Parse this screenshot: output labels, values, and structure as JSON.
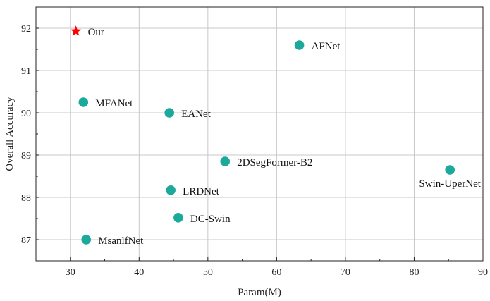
{
  "chart_data": {
    "type": "scatter",
    "title": "",
    "xlabel": "Param(M)",
    "ylabel": "Overall Accuracy",
    "xlim": [
      25,
      90
    ],
    "ylim": [
      86.5,
      92.5
    ],
    "xticks": [
      30,
      40,
      50,
      60,
      70,
      80,
      90
    ],
    "yticks": [
      87,
      88,
      89,
      90,
      91,
      92
    ],
    "grid": true,
    "points": [
      {
        "label": "Our",
        "x": 30.8,
        "y": 91.93,
        "marker": "star",
        "color": "#ff0000"
      },
      {
        "label": "AFNet",
        "x": 63.3,
        "y": 91.6,
        "marker": "circle",
        "color": "#1aa99a"
      },
      {
        "label": "MFANet",
        "x": 31.9,
        "y": 90.25,
        "marker": "circle",
        "color": "#1aa99a"
      },
      {
        "label": "EANet",
        "x": 44.4,
        "y": 90.0,
        "marker": "circle",
        "color": "#1aa99a"
      },
      {
        "label": "2DSegFormer-B2",
        "x": 52.5,
        "y": 88.85,
        "marker": "circle",
        "color": "#1aa99a"
      },
      {
        "label": "Swin-UperNet",
        "x": 85.2,
        "y": 88.65,
        "marker": "circle",
        "color": "#1aa99a"
      },
      {
        "label": "LRDNet",
        "x": 44.6,
        "y": 88.17,
        "marker": "circle",
        "color": "#1aa99a"
      },
      {
        "label": "DC-Swin",
        "x": 45.7,
        "y": 87.52,
        "marker": "circle",
        "color": "#1aa99a"
      },
      {
        "label": "MsanlfNet",
        "x": 32.3,
        "y": 87.0,
        "marker": "circle",
        "color": "#1aa99a"
      }
    ]
  }
}
